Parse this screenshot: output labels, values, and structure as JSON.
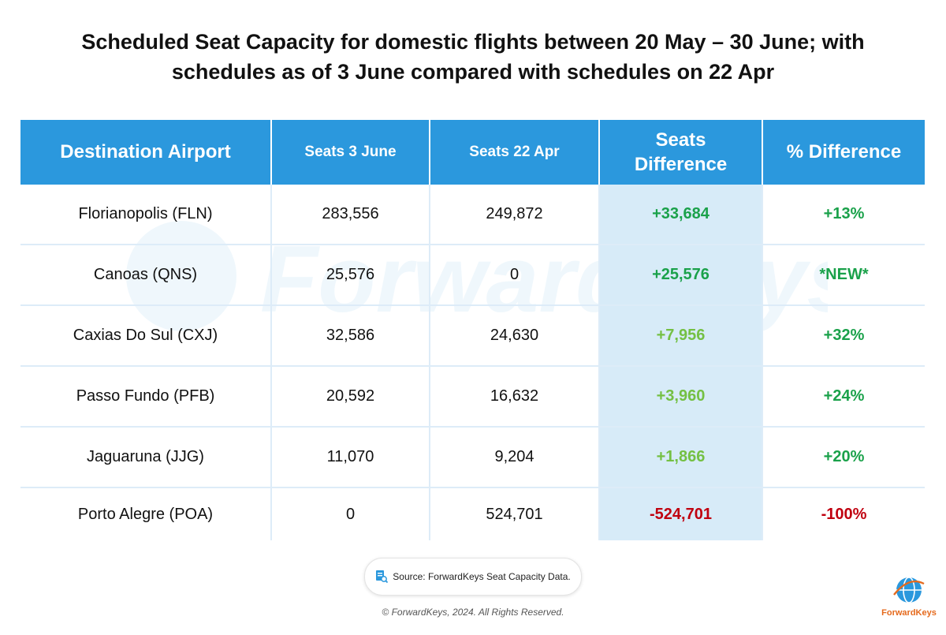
{
  "title": "Scheduled Seat Capacity for domestic flights between 20 May – 30 June; with schedules as of 3 June compared with schedules on 22 Apr",
  "chart_data": {
    "type": "table",
    "title": "Scheduled Seat Capacity for domestic flights between 20 May – 30 June; with schedules as of 3 June compared with schedules on 22 Apr",
    "columns": [
      "Destination Airport",
      "Seats 3 June",
      "Seats 22 Apr",
      "Seats Difference",
      "% Difference"
    ],
    "rows": [
      {
        "airport": "Florianopolis (FLN)",
        "seats_3_june": "283,556",
        "seats_22_apr": "249,872",
        "difference": "+33,684",
        "pct": "+13%",
        "diff_color": "#1aa14a",
        "pct_color": "#1aa14a"
      },
      {
        "airport": "Canoas (QNS)",
        "seats_3_june": "25,576",
        "seats_22_apr": "0",
        "difference": "+25,576",
        "pct": "*NEW*",
        "diff_color": "#1aa14a",
        "pct_color": "#1aa14a"
      },
      {
        "airport": "Caxias Do Sul (CXJ)",
        "seats_3_june": "32,586",
        "seats_22_apr": "24,630",
        "difference": "+7,956",
        "pct": "+32%",
        "diff_color": "#74c043",
        "pct_color": "#1aa14a"
      },
      {
        "airport": "Passo Fundo (PFB)",
        "seats_3_june": "20,592",
        "seats_22_apr": "16,632",
        "difference": "+3,960",
        "pct": "+24%",
        "diff_color": "#74c043",
        "pct_color": "#1aa14a"
      },
      {
        "airport": "Jaguaruna (JJG)",
        "seats_3_june": "11,070",
        "seats_22_apr": "9,204",
        "difference": "+1,866",
        "pct": "+20%",
        "diff_color": "#74c043",
        "pct_color": "#1aa14a"
      },
      {
        "airport": "Porto Alegre (POA)",
        "seats_3_june": "0",
        "seats_22_apr": "524,701",
        "difference": "-524,701",
        "pct": "-100%",
        "diff_color": "#c0000f",
        "pct_color": "#c0000f"
      }
    ]
  },
  "colors": {
    "header": "#2b98dd",
    "highlight": "#d7ebf8"
  },
  "watermark": "ForwardKeys",
  "source": "Source: ForwardKeys Seat Capacity Data.",
  "copyright": "© ForwardKeys, 2024. All Rights Reserved.",
  "logo": {
    "text": "ForwardKeys",
    "icon": "globe-icon"
  }
}
